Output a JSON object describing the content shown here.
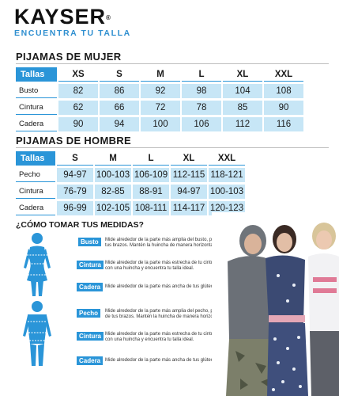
{
  "brand": {
    "name": "KAYSER",
    "reg": "®",
    "tagline": "ENCUENTRA TU TALLA"
  },
  "women": {
    "title": "PIJAMAS DE MUJER",
    "header": "Tallas",
    "sizes": [
      "XS",
      "S",
      "M",
      "L",
      "XL",
      "XXL"
    ],
    "rows": [
      {
        "label": "Busto",
        "values": [
          "82",
          "86",
          "92",
          "98",
          "104",
          "108"
        ]
      },
      {
        "label": "Cintura",
        "values": [
          "62",
          "66",
          "72",
          "78",
          "85",
          "90"
        ]
      },
      {
        "label": "Cadera",
        "values": [
          "90",
          "94",
          "100",
          "106",
          "112",
          "116"
        ]
      }
    ]
  },
  "men": {
    "title": "PIJAMAS DE HOMBRE",
    "header": "Tallas",
    "sizes": [
      "S",
      "M",
      "L",
      "XL",
      "XXL"
    ],
    "rows": [
      {
        "label": "Pecho",
        "values": [
          "94-97",
          "100-103",
          "106-109",
          "112-115",
          "118-121"
        ]
      },
      {
        "label": "Cintura",
        "values": [
          "76-79",
          "82-85",
          "88-91",
          "94-97",
          "100-103"
        ]
      },
      {
        "label": "Cadera",
        "values": [
          "96-99",
          "102-105",
          "108-111",
          "114-117",
          "120-123"
        ]
      }
    ]
  },
  "howto": {
    "title": "¿CÓMO TOMAR TUS MEDIDAS?",
    "women": [
      {
        "tag": "Busto",
        "text": "Mide alrededor de la parte más amplia del busto, por debajo de tus brazos. Mantén la huincha de manera horizontal."
      },
      {
        "tag": "Cintura",
        "text": "Mide alrededor de la parte más estrecha de tu cintura, rodea con una huincha y encuentra tu talla ideal."
      },
      {
        "tag": "Cadera",
        "text": "Mide alrededor de la parte más ancha de tus glúteos."
      }
    ],
    "men": [
      {
        "tag": "Pecho",
        "text": "Mide alrededor de la parte más amplia del pecho, por debajo de tus brazos. Mantén la huincha de manera horizontal."
      },
      {
        "tag": "Cintura",
        "text": "Mide alrededor de la parte más estrecha de tu cintura, rodea con una huincha y encuentra tu talla ideal."
      },
      {
        "tag": "Cadera",
        "text": "Mide alrededor de la parte más ancha de tus glúteos."
      }
    ]
  },
  "colors": {
    "accent": "#2a95d8",
    "cell": "#c7e6f6",
    "figure": "#2a95d8"
  }
}
